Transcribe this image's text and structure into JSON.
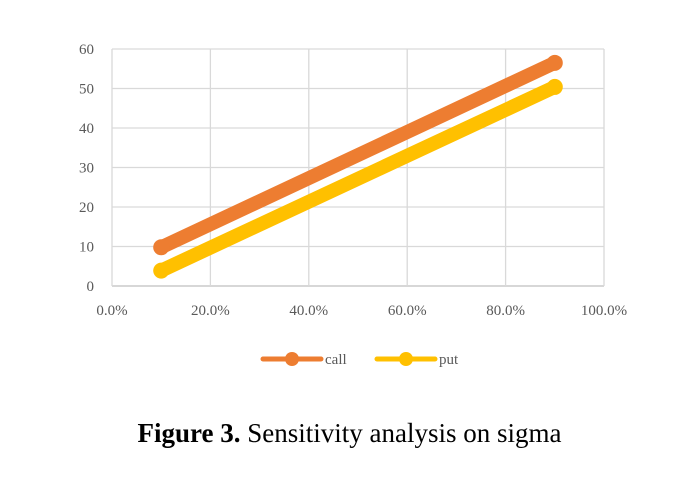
{
  "chart_data": {
    "type": "line",
    "x": [
      0.1,
      0.9
    ],
    "series": [
      {
        "name": "call",
        "values": [
          9.8,
          56.5
        ],
        "color": "#ED7D31"
      },
      {
        "name": "put",
        "values": [
          3.9,
          50.4
        ],
        "color": "#FFC000"
      }
    ],
    "xlim": [
      0,
      1
    ],
    "ylim": [
      0,
      60
    ],
    "x_ticks": [
      0,
      0.2,
      0.4,
      0.6,
      0.8,
      1.0
    ],
    "x_tick_labels": [
      "0.0%",
      "20.0%",
      "40.0%",
      "60.0%",
      "80.0%",
      "100.0%"
    ],
    "y_ticks": [
      0,
      10,
      20,
      30,
      40,
      50,
      60
    ],
    "y_tick_labels": [
      "0",
      "10",
      "20",
      "30",
      "40",
      "50",
      "60"
    ],
    "grid": true,
    "legend_position": "bottom",
    "markers": true
  },
  "caption": {
    "label": "Figure 3.",
    "text": " Sensitivity analysis on sigma"
  }
}
